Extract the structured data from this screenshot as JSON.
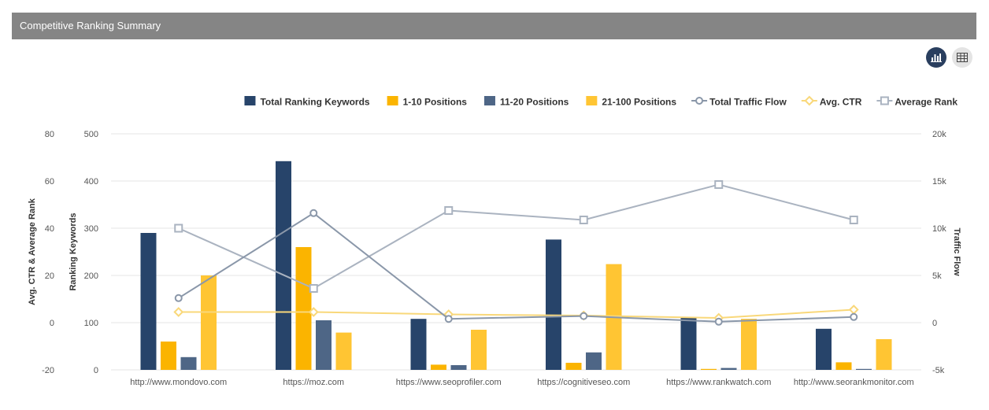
{
  "header": {
    "title": "Competitive Ranking Summary"
  },
  "toolbar": {
    "chart_view_icon": "bar-chart-icon",
    "table_view_icon": "table-grid-icon"
  },
  "colors": {
    "header_bg": "#858585",
    "total_keywords": "#27446a",
    "pos_1_10": "#fbb400",
    "pos_11_20": "#4e6686",
    "pos_21_100": "#ffc533",
    "traffic_flow": "#8a97a9",
    "avg_ctr": "#f9d87a",
    "avg_rank": "#aab3c0"
  },
  "chart_data": {
    "type": "bar",
    "categories": [
      "http://www.mondovo.com",
      "https://moz.com",
      "https://www.seoprofiler.com",
      "https://cognitiveseo.com",
      "https://www.rankwatch.com",
      "http://www.seorankmonitor.com"
    ],
    "series": [
      {
        "name": "Total Ranking Keywords",
        "type": "bar",
        "axis": "keywords",
        "color": "#27446a",
        "values": [
          290,
          442,
          108,
          276,
          112,
          87
        ]
      },
      {
        "name": "1-10 Positions",
        "type": "bar",
        "axis": "keywords",
        "color": "#fbb400",
        "values": [
          60,
          260,
          11,
          15,
          2,
          16
        ]
      },
      {
        "name": "11-20 Positions",
        "type": "bar",
        "axis": "keywords",
        "color": "#4e6686",
        "values": [
          27,
          105,
          10,
          37,
          4,
          2
        ]
      },
      {
        "name": "21-100 Positions",
        "type": "bar",
        "axis": "keywords",
        "color": "#ffc533",
        "values": [
          200,
          79,
          85,
          224,
          108,
          65
        ]
      },
      {
        "name": "Total Traffic Flow",
        "type": "line",
        "axis": "traffic",
        "color": "#8a97a9",
        "marker": "circle",
        "values": [
          2600,
          11600,
          400,
          700,
          100,
          600
        ]
      },
      {
        "name": "Avg. CTR",
        "type": "line",
        "axis": "ctr_rank",
        "color": "#f9d87a",
        "marker": "diamond",
        "values": [
          4.5,
          4.5,
          3.5,
          3.0,
          2.0,
          5.5
        ]
      },
      {
        "name": "Average Rank",
        "type": "line",
        "axis": "ctr_rank",
        "color": "#aab3c0",
        "marker": "square",
        "values": [
          40,
          14.5,
          47.5,
          43.5,
          58.5,
          43.5
        ]
      }
    ],
    "axes": {
      "keywords": {
        "title": "Ranking Keywords",
        "range": [
          0,
          500
        ],
        "ticks": [
          "0",
          "100",
          "200",
          "300",
          "400",
          "500"
        ]
      },
      "ctr_rank": {
        "title": "Avg. CTR & Average Rank",
        "range": [
          -20,
          80
        ],
        "ticks": [
          "-20",
          "0",
          "20",
          "40",
          "60",
          "80"
        ]
      },
      "traffic": {
        "title": "Traffic Flow",
        "range": [
          -5000,
          20000
        ],
        "ticks": [
          "-5k",
          "0",
          "5k",
          "10k",
          "15k",
          "20k"
        ]
      }
    },
    "grid": true,
    "legend_position": "top-right"
  }
}
